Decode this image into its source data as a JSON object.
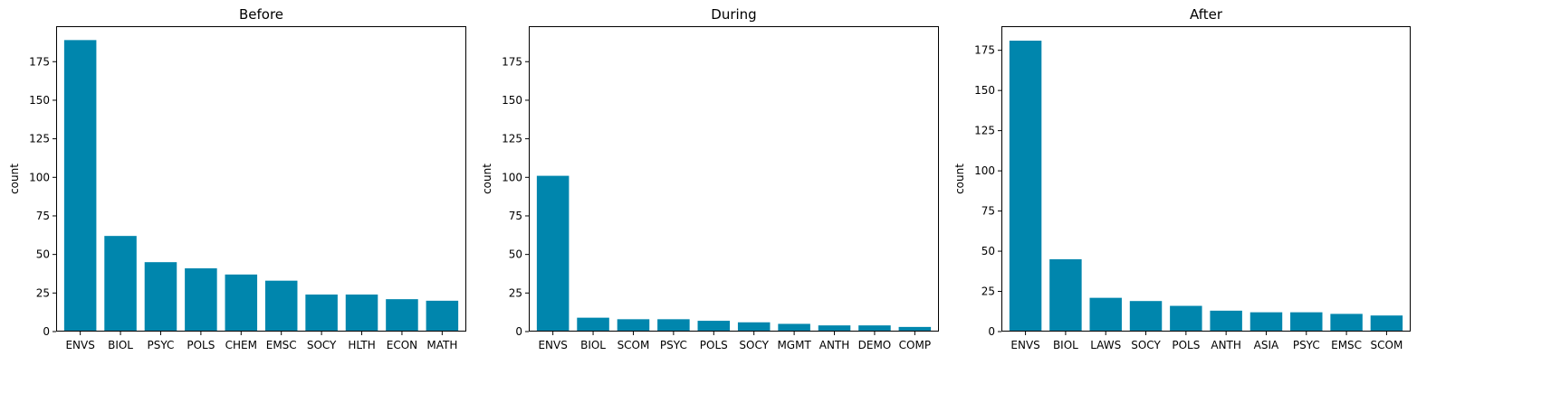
{
  "figure": {
    "bar_color": "#0086ad",
    "axes_color": "#000000"
  },
  "chart_data": [
    {
      "type": "bar",
      "title": "Before",
      "xlabel": "",
      "ylabel": "count",
      "ylim": [
        0,
        198
      ],
      "yticks": [
        0,
        25,
        50,
        75,
        100,
        125,
        150,
        175
      ],
      "categories": [
        "ENVS",
        "BIOL",
        "PSYC",
        "POLS",
        "CHEM",
        "EMSC",
        "SOCY",
        "HLTH",
        "ECON",
        "MATH"
      ],
      "values": [
        189,
        62,
        45,
        41,
        37,
        33,
        24,
        24,
        21,
        20
      ]
    },
    {
      "type": "bar",
      "title": "During",
      "xlabel": "",
      "ylabel": "count",
      "ylim": [
        0,
        198
      ],
      "yticks": [
        0,
        25,
        50,
        75,
        100,
        125,
        150,
        175
      ],
      "categories": [
        "ENVS",
        "BIOL",
        "SCOM",
        "PSYC",
        "POLS",
        "SOCY",
        "MGMT",
        "ANTH",
        "DEMO",
        "COMP"
      ],
      "values": [
        101,
        9,
        8,
        8,
        7,
        6,
        5,
        4,
        4,
        3
      ]
    },
    {
      "type": "bar",
      "title": "After",
      "xlabel": "",
      "ylabel": "count",
      "ylim": [
        0,
        190
      ],
      "yticks": [
        0,
        25,
        50,
        75,
        100,
        125,
        150,
        175
      ],
      "categories": [
        "ENVS",
        "BIOL",
        "LAWS",
        "SOCY",
        "POLS",
        "ANTH",
        "ASIA",
        "PSYC",
        "EMSC",
        "SCOM"
      ],
      "values": [
        181,
        45,
        21,
        19,
        16,
        13,
        12,
        12,
        11,
        10
      ]
    }
  ]
}
